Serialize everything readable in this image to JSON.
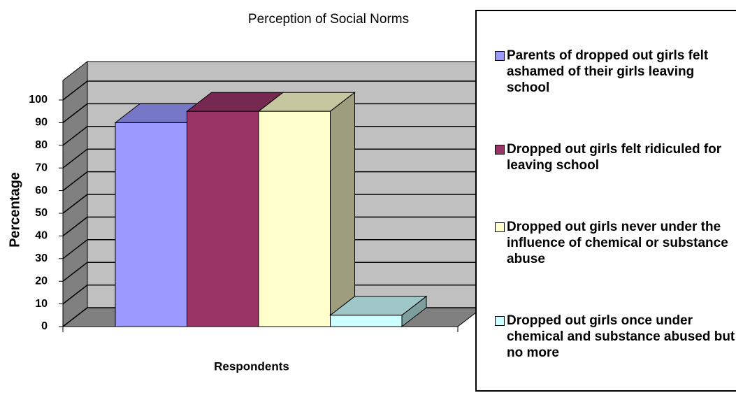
{
  "chart_data": {
    "type": "bar",
    "title": "Perception of Social Norms",
    "y_label": "Percentage",
    "x_label": "Respondents",
    "series": [
      {
        "name": "Parents of dropped out girls felt ashamed of their girls leaving school",
        "color": "#9999ff",
        "values": [
          90
        ]
      },
      {
        "name": "Dropped out girls felt ridiculed for leaving school",
        "color": "#993366",
        "values": [
          95
        ]
      },
      {
        "name": "Dropped out girls never under the influence of chemical or substance abuse",
        "color": "#ffffcc",
        "values": [
          95
        ]
      },
      {
        "name": "Dropped out girls once under chemical and substance abused but no more",
        "color": "#ccffff",
        "values": [
          5
        ]
      }
    ],
    "ylim": [
      0,
      100
    ],
    "yticks": [
      0,
      10,
      20,
      30,
      40,
      50,
      60,
      70,
      80,
      90,
      100
    ],
    "grid": true,
    "legend": "right"
  }
}
